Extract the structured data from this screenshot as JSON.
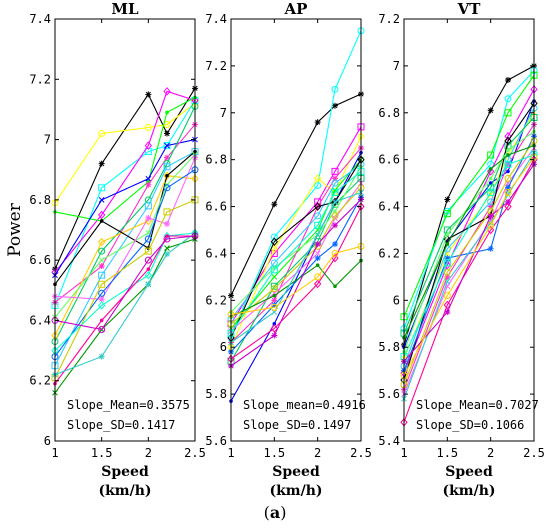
{
  "figure": {
    "ylabel": "Power",
    "panel_label_prefix": "(",
    "panel_label_letter": "a",
    "panel_label_suffix": ")"
  },
  "chart_data": [
    {
      "type": "line",
      "title": "ML",
      "xlabel": "Speed",
      "xunit": "(km/h)",
      "xlim": [
        1,
        2.5
      ],
      "ylim": [
        6,
        7.4
      ],
      "xticks": [
        "1",
        "1.5",
        "2",
        "2.5"
      ],
      "yticks": [
        "6",
        "6.2",
        "6.4",
        "6.6",
        "6.8",
        "7",
        "7.2",
        "7.4"
      ],
      "x": [
        1,
        1.5,
        2,
        2.2,
        2.5
      ],
      "series_colors": [
        "#000000",
        "#ffff00",
        "#00ffff",
        "#ff00ff",
        "#00ff00",
        "#0000ff",
        "#ff33cc",
        "#00cc66",
        "#33ccff",
        "#ffcc00",
        "#000000",
        "#66ff66",
        "#ff66ff",
        "#0066ff",
        "#cccc00",
        "#00ffcc",
        "#ff0099",
        "#009900",
        "#33cccc",
        "#cc00cc"
      ],
      "series": [
        {
          "values": [
            6.57,
            6.92,
            7.15,
            7.02,
            7.17
          ]
        },
        {
          "values": [
            6.79,
            7.02,
            7.04,
            7.05,
            7.12
          ]
        },
        {
          "values": [
            6.45,
            6.84,
            6.96,
            6.98,
            7.13
          ]
        },
        {
          "values": [
            6.56,
            6.75,
            6.98,
            7.16,
            7.13
          ]
        },
        {
          "values": [
            6.76,
            6.73,
            6.86,
            7.09,
            7.14
          ]
        },
        {
          "values": [
            6.55,
            6.8,
            6.87,
            6.98,
            7.0
          ]
        },
        {
          "values": [
            6.46,
            6.58,
            6.85,
            6.94,
            7.05
          ]
        },
        {
          "values": [
            6.33,
            6.63,
            6.8,
            6.92,
            7.11
          ]
        },
        {
          "values": [
            6.25,
            6.55,
            6.78,
            6.91,
            6.96
          ]
        },
        {
          "values": [
            6.35,
            6.66,
            6.73,
            6.88,
            6.87
          ]
        },
        {
          "values": [
            6.52,
            6.73,
            6.64,
            6.88,
            6.96
          ]
        },
        {
          "values": [
            6.41,
            6.6,
            6.69,
            6.85,
            6.95
          ]
        },
        {
          "values": [
            6.48,
            6.47,
            6.74,
            6.72,
            6.94
          ]
        },
        {
          "values": [
            6.28,
            6.49,
            6.67,
            6.84,
            6.9
          ]
        },
        {
          "values": [
            6.21,
            6.52,
            6.63,
            6.76,
            6.8
          ]
        },
        {
          "values": [
            6.3,
            6.45,
            6.55,
            6.68,
            6.69
          ]
        },
        {
          "values": [
            6.19,
            6.4,
            6.57,
            6.68,
            6.68
          ]
        },
        {
          "values": [
            6.16,
            6.37,
            6.52,
            6.64,
            6.67
          ]
        },
        {
          "values": [
            6.22,
            6.28,
            6.52,
            6.62,
            6.69
          ]
        },
        {
          "values": [
            6.4,
            6.37,
            6.6,
            6.67,
            6.68
          ]
        }
      ],
      "annotations": [
        "Slope_Mean=0.3575",
        "Slope_SD=0.1417"
      ]
    },
    {
      "type": "line",
      "title": "AP",
      "xlabel": "Speed",
      "xunit": "(km/h)",
      "xlim": [
        1,
        2.5
      ],
      "ylim": [
        5.6,
        7.4
      ],
      "xticks": [
        "1",
        "1.5",
        "2",
        "2.5"
      ],
      "yticks": [
        "5.6",
        "5.8",
        "6",
        "6.2",
        "6.4",
        "6.6",
        "6.8",
        "7",
        "7.2",
        "7.4"
      ],
      "x": [
        1,
        1.5,
        2,
        2.2,
        2.5
      ],
      "series_colors": [
        "#000000",
        "#00ffff",
        "#ff00ff",
        "#ffff00",
        "#0000ff",
        "#00ff00",
        "#ff33cc",
        "#33ccff",
        "#00cc66",
        "#000000",
        "#66ff66",
        "#ff66ff",
        "#0066ff",
        "#cccc00",
        "#00ffcc",
        "#ff0099",
        "#009900",
        "#33cccc",
        "#cc00cc",
        "#ffcc00"
      ],
      "series": [
        {
          "values": [
            6.22,
            6.61,
            6.96,
            7.03,
            7.08
          ]
        },
        {
          "values": [
            6.05,
            6.47,
            6.69,
            7.1,
            7.35
          ]
        },
        {
          "values": [
            6.1,
            6.4,
            6.62,
            6.75,
            6.94
          ]
        },
        {
          "values": [
            6.0,
            6.42,
            6.72,
            6.66,
            6.9
          ]
        },
        {
          "values": [
            5.77,
            6.1,
            6.48,
            6.62,
            6.83
          ]
        },
        {
          "values": [
            6.08,
            6.3,
            6.5,
            6.67,
            6.8
          ]
        },
        {
          "values": [
            6.02,
            6.2,
            6.6,
            6.72,
            6.85
          ]
        },
        {
          "values": [
            6.12,
            6.36,
            6.56,
            6.7,
            6.78
          ]
        },
        {
          "values": [
            5.94,
            6.26,
            6.45,
            6.61,
            6.72
          ]
        },
        {
          "values": [
            6.04,
            6.45,
            6.6,
            6.62,
            6.8
          ]
        },
        {
          "values": [
            6.15,
            6.34,
            6.48,
            6.58,
            6.77
          ]
        },
        {
          "values": [
            6.07,
            6.23,
            6.4,
            6.55,
            6.7
          ]
        },
        {
          "values": [
            5.98,
            6.18,
            6.38,
            6.44,
            6.64
          ]
        },
        {
          "values": [
            6.1,
            6.25,
            6.43,
            6.56,
            6.68
          ]
        },
        {
          "values": [
            6.06,
            6.33,
            6.52,
            6.66,
            6.75
          ]
        },
        {
          "values": [
            5.95,
            6.08,
            6.27,
            6.38,
            6.6
          ]
        },
        {
          "values": [
            6.13,
            6.22,
            6.35,
            6.26,
            6.37
          ]
        },
        {
          "values": [
            6.02,
            6.15,
            6.48,
            6.62,
            6.66
          ]
        },
        {
          "values": [
            5.92,
            6.05,
            6.44,
            6.52,
            6.63
          ]
        },
        {
          "values": [
            6.14,
            6.17,
            6.3,
            6.4,
            6.43
          ]
        }
      ],
      "annotations": [
        "Slope_mean=0.4916",
        "Slope_SD=0.1497"
      ]
    },
    {
      "type": "line",
      "title": "VT",
      "xlabel": "Speed",
      "xunit": "(km/h)",
      "xlim": [
        1,
        2.5
      ],
      "ylim": [
        5.4,
        7.2
      ],
      "xticks": [
        "1",
        "1.5",
        "2",
        "2.5"
      ],
      "yticks": [
        "5.4",
        "5.6",
        "5.8",
        "6",
        "6.2",
        "6.4",
        "6.6",
        "6.8",
        "7",
        "7.2"
      ],
      "x": [
        1,
        1.5,
        2,
        2.2,
        2.5
      ],
      "series_colors": [
        "#000000",
        "#00ffff",
        "#00ff00",
        "#ff00ff",
        "#0000ff",
        "#ffff00",
        "#ff33cc",
        "#33ccff",
        "#00cc66",
        "#000000",
        "#66ff66",
        "#ff66ff",
        "#0066ff",
        "#cccc00",
        "#00ffcc",
        "#ff0099",
        "#009900",
        "#33cccc",
        "#cc00cc",
        "#ffcc00"
      ],
      "series": [
        {
          "values": [
            5.81,
            6.43,
            6.81,
            6.94,
            7.0
          ]
        },
        {
          "values": [
            5.88,
            6.38,
            6.58,
            6.86,
            6.98
          ]
        },
        {
          "values": [
            5.93,
            6.37,
            6.62,
            6.8,
            6.96
          ]
        },
        {
          "values": [
            5.69,
            6.15,
            6.55,
            6.7,
            6.9
          ]
        },
        {
          "values": [
            5.8,
            6.25,
            6.5,
            6.55,
            6.85
          ]
        },
        {
          "values": [
            5.75,
            6.2,
            6.45,
            6.62,
            6.8
          ]
        },
        {
          "values": [
            5.62,
            6.1,
            6.4,
            6.58,
            6.75
          ]
        },
        {
          "values": [
            5.72,
            6.22,
            6.42,
            6.6,
            6.82
          ]
        },
        {
          "values": [
            5.86,
            6.3,
            6.48,
            6.66,
            6.78
          ]
        },
        {
          "values": [
            5.66,
            6.26,
            6.36,
            6.68,
            6.84
          ]
        },
        {
          "values": [
            5.78,
            6.28,
            6.52,
            6.64,
            6.72
          ]
        },
        {
          "values": [
            5.6,
            6.06,
            6.34,
            6.5,
            6.65
          ]
        },
        {
          "values": [
            5.7,
            6.18,
            6.22,
            6.48,
            6.7
          ]
        },
        {
          "values": [
            5.64,
            6.12,
            6.38,
            6.52,
            6.68
          ]
        },
        {
          "values": [
            5.76,
            6.16,
            6.46,
            6.58,
            6.62
          ]
        },
        {
          "values": [
            5.48,
            5.98,
            6.3,
            6.4,
            6.6
          ]
        },
        {
          "values": [
            5.84,
            6.24,
            6.56,
            6.62,
            6.66
          ]
        },
        {
          "values": [
            5.58,
            6.08,
            6.33,
            6.45,
            6.63
          ]
        },
        {
          "values": [
            5.74,
            5.95,
            6.36,
            6.42,
            6.58
          ]
        },
        {
          "values": [
            5.68,
            6.02,
            6.32,
            6.46,
            6.61
          ]
        }
      ],
      "annotations": [
        "Slope_Mean=0.7027",
        "Slope_SD=0.1066"
      ]
    }
  ]
}
